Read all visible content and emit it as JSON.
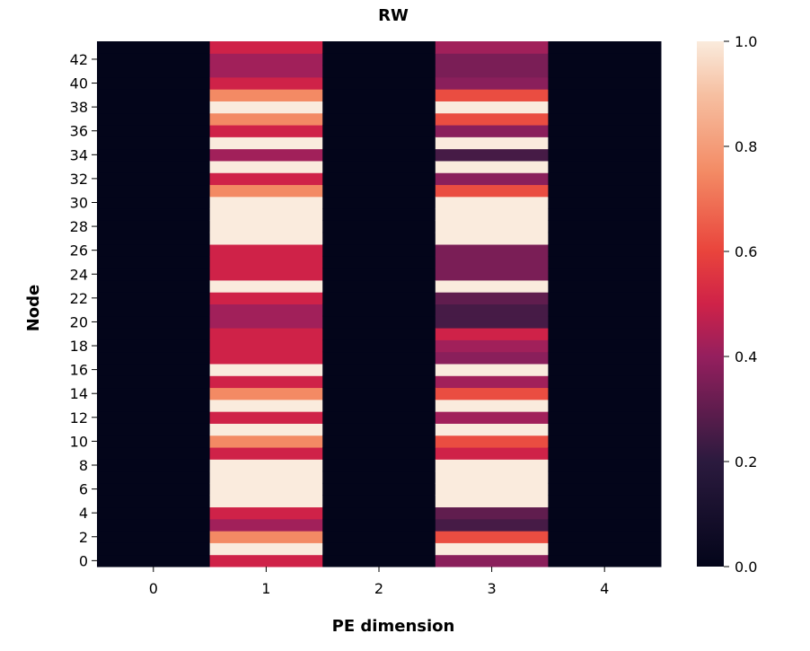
{
  "chart_data": {
    "type": "heatmap",
    "title": "RW",
    "xlabel": "PE dimension",
    "ylabel": "Node",
    "x": [
      "0",
      "1",
      "2",
      "3",
      "4"
    ],
    "y_ticks": [
      "0",
      "2",
      "4",
      "6",
      "8",
      "10",
      "12",
      "14",
      "16",
      "18",
      "20",
      "22",
      "24",
      "26",
      "28",
      "30",
      "32",
      "34",
      "36",
      "38",
      "40",
      "42"
    ],
    "n_rows": 44,
    "colorscale": "rocket",
    "zlim": [
      0.0,
      1.0
    ],
    "colorbar_ticks": [
      "0.0",
      "0.2",
      "0.4",
      "0.6",
      "0.8",
      "1.0"
    ],
    "columns": {
      "0": [
        0,
        0,
        0,
        0,
        0,
        0,
        0,
        0,
        0,
        0,
        0,
        0,
        0,
        0,
        0,
        0,
        0,
        0,
        0,
        0,
        0,
        0,
        0,
        0,
        0,
        0,
        0,
        0,
        0,
        0,
        0,
        0,
        0,
        0,
        0,
        0,
        0,
        0,
        0,
        0,
        0,
        0,
        0,
        0
      ],
      "1": [
        0.5,
        1.0,
        0.75,
        0.42,
        0.5,
        1.0,
        1.0,
        1.0,
        1.0,
        0.5,
        0.75,
        1.0,
        0.5,
        1.0,
        0.75,
        0.5,
        1.0,
        0.5,
        0.5,
        0.5,
        0.42,
        0.42,
        0.5,
        1.0,
        0.5,
        0.5,
        0.5,
        1.0,
        1.0,
        1.0,
        1.0,
        0.75,
        0.5,
        1.0,
        0.42,
        1.0,
        0.5,
        0.75,
        1.0,
        0.75,
        0.5,
        0.42,
        0.42,
        0.5
      ],
      "2": [
        0,
        0,
        0,
        0,
        0,
        0,
        0,
        0,
        0,
        0,
        0,
        0,
        0,
        0,
        0,
        0,
        0,
        0,
        0,
        0,
        0,
        0,
        0,
        0,
        0,
        0,
        0,
        0,
        0,
        0,
        0,
        0,
        0,
        0,
        0,
        0,
        0,
        0,
        0,
        0,
        0,
        0,
        0,
        0
      ],
      "3": [
        0.38,
        1.0,
        0.62,
        0.25,
        0.3,
        1.0,
        1.0,
        1.0,
        1.0,
        0.5,
        0.62,
        1.0,
        0.42,
        1.0,
        0.62,
        0.42,
        1.0,
        0.38,
        0.42,
        0.5,
        0.25,
        0.25,
        0.3,
        1.0,
        0.35,
        0.35,
        0.35,
        1.0,
        1.0,
        1.0,
        1.0,
        0.62,
        0.38,
        1.0,
        0.25,
        1.0,
        0.38,
        0.62,
        1.0,
        0.62,
        0.38,
        0.35,
        0.35,
        0.42
      ],
      "4": [
        0,
        0,
        0,
        0,
        0,
        0,
        0,
        0,
        0,
        0,
        0,
        0,
        0,
        0,
        0,
        0,
        0,
        0,
        0,
        0,
        0,
        0,
        0,
        0,
        0,
        0,
        0,
        0,
        0,
        0,
        0,
        0,
        0,
        0,
        0,
        0,
        0,
        0,
        0,
        0,
        0,
        0,
        0,
        0
      ]
    }
  }
}
